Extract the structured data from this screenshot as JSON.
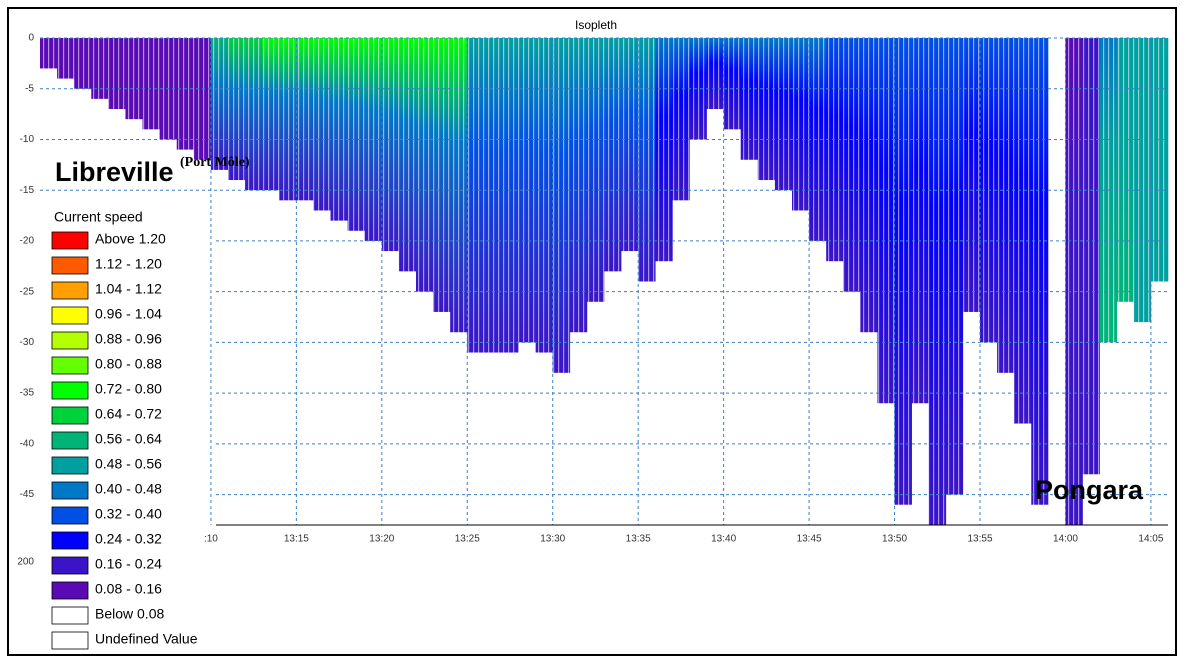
{
  "chart_data": {
    "type": "isopleth",
    "title": "Isopleth",
    "legend_title": "Current speed",
    "legend": [
      {
        "label": "Above 1.20",
        "color": "#ff0000"
      },
      {
        "label": "1.12 - 1.20",
        "color": "#ff5a00"
      },
      {
        "label": "1.04 - 1.12",
        "color": "#ffa000"
      },
      {
        "label": "0.96 - 1.04",
        "color": "#ffff00"
      },
      {
        "label": "0.88 - 0.96",
        "color": "#b4ff00"
      },
      {
        "label": "0.80 - 0.88",
        "color": "#64ff00"
      },
      {
        "label": "0.72 - 0.80",
        "color": "#00ff00"
      },
      {
        "label": "0.64 - 0.72",
        "color": "#00d23c"
      },
      {
        "label": "0.56 - 0.64",
        "color": "#00b478"
      },
      {
        "label": "0.48 - 0.56",
        "color": "#00a0a0"
      },
      {
        "label": "0.40 - 0.48",
        "color": "#0078c8"
      },
      {
        "label": "0.32 - 0.40",
        "color": "#0050e6"
      },
      {
        "label": "0.24 - 0.32",
        "color": "#0000ff"
      },
      {
        "label": "0.16 - 0.24",
        "color": "#3c14c8"
      },
      {
        "label": "0.08 - 0.16",
        "color": "#5a0ab4"
      },
      {
        "label": "Below 0.08",
        "color": "#ffffff"
      },
      {
        "label": "Undefined Value",
        "color": "#ffffff"
      }
    ],
    "annotations": [
      {
        "text": "Libreville"
      },
      {
        "text": "(Port Môle)"
      },
      {
        "text": "Pongara"
      },
      {
        "text": "200"
      }
    ],
    "x": [
      "13:00",
      "13:01",
      "13:02",
      "13:03",
      "13:04",
      "13:05",
      "13:06",
      "13:07",
      "13:08",
      "13:09",
      "13:10",
      "13:11",
      "13:12",
      "13:13",
      "13:14",
      "13:15",
      "13:16",
      "13:17",
      "13:18",
      "13:19",
      "13:20",
      "13:21",
      "13:22",
      "13:23",
      "13:24",
      "13:25",
      "13:26",
      "13:27",
      "13:28",
      "13:29",
      "13:30",
      "13:31",
      "13:32",
      "13:33",
      "13:34",
      "13:35",
      "13:36",
      "13:37",
      "13:38",
      "13:39",
      "13:40",
      "13:41",
      "13:42",
      "13:43",
      "13:44",
      "13:45",
      "13:46",
      "13:47",
      "13:48",
      "13:49",
      "13:50",
      "13:51",
      "13:52",
      "13:53",
      "13:54",
      "13:55",
      "13:56",
      "13:57",
      "13:58",
      "13:59",
      "14:00",
      "14:01",
      "14:02",
      "14:03",
      "14:04",
      "14:05"
    ],
    "bottom_depth": [
      -3,
      -4,
      -5,
      -6,
      -7,
      -8,
      -9,
      -10,
      -11,
      -12,
      -13,
      -14,
      -15,
      -15,
      -16,
      -16,
      -17,
      -18,
      -19,
      -20,
      -21,
      -23,
      -25,
      -27,
      -29,
      -31,
      -31,
      -31,
      -30,
      -31,
      -33,
      -29,
      -26,
      -23,
      -21,
      -24,
      -22,
      -16,
      -10,
      -7,
      -9,
      -12,
      -14,
      -15,
      -17,
      -20,
      -22,
      -25,
      -29,
      -36,
      -46,
      -36,
      -48,
      -45,
      -27,
      -30,
      -33,
      -38,
      -46,
      null,
      -48,
      -43,
      -30,
      -26,
      -28,
      -24
    ],
    "surface_speed": [
      0.14,
      0.14,
      0.14,
      0.14,
      0.14,
      0.14,
      0.14,
      0.14,
      0.14,
      0.14,
      0.6,
      0.65,
      0.7,
      0.75,
      0.75,
      0.75,
      0.75,
      0.75,
      0.75,
      0.75,
      0.75,
      0.75,
      0.75,
      0.75,
      0.75,
      0.55,
      0.55,
      0.55,
      0.55,
      0.55,
      0.55,
      0.55,
      0.55,
      0.55,
      0.55,
      0.55,
      0.4,
      0.4,
      0.4,
      0.4,
      0.4,
      0.4,
      0.4,
      0.4,
      0.4,
      0.4,
      0.35,
      0.35,
      0.35,
      0.35,
      0.35,
      0.35,
      0.35,
      0.35,
      0.35,
      0.35,
      0.35,
      0.35,
      0.35,
      null,
      0.15,
      0.2,
      0.4,
      0.5,
      0.55,
      0.5
    ],
    "bottom_speed": [
      0.12,
      0.12,
      0.12,
      0.12,
      0.12,
      0.12,
      0.12,
      0.12,
      0.12,
      0.12,
      0.2,
      0.2,
      0.2,
      0.2,
      0.2,
      0.2,
      0.2,
      0.2,
      0.2,
      0.2,
      0.2,
      0.2,
      0.2,
      0.2,
      0.2,
      0.2,
      0.2,
      0.2,
      0.2,
      0.2,
      0.2,
      0.2,
      0.2,
      0.2,
      0.2,
      0.2,
      0.2,
      0.2,
      0.2,
      0.2,
      0.2,
      0.2,
      0.2,
      0.2,
      0.2,
      0.2,
      0.2,
      0.2,
      0.2,
      0.2,
      0.2,
      0.2,
      0.2,
      0.2,
      0.2,
      0.2,
      0.2,
      0.2,
      0.2,
      null,
      0.2,
      0.2,
      0.6,
      0.6,
      0.5,
      0.5
    ],
    "xlim": [
      "13:00",
      "14:06"
    ],
    "ylim": [
      -48,
      0
    ],
    "yticks": [
      0,
      -5,
      -10,
      -15,
      -20,
      -25,
      -30,
      -35,
      -40,
      -45
    ],
    "xticks": [
      {
        "value": "13:10",
        "label": ":10"
      },
      {
        "value": "13:15",
        "label": "13:15"
      },
      {
        "value": "13:20",
        "label": "13:20"
      },
      {
        "value": "13:25",
        "label": "13:25"
      },
      {
        "value": "13:30",
        "label": "13:30"
      },
      {
        "value": "13:35",
        "label": "13:35"
      },
      {
        "value": "13:40",
        "label": "13:40"
      },
      {
        "value": "13:45",
        "label": "13:45"
      },
      {
        "value": "13:50",
        "label": "13:50"
      },
      {
        "value": "13:55",
        "label": "13:55"
      },
      {
        "value": "14:00",
        "label": "14:00"
      },
      {
        "value": "14:05",
        "label": "14:05"
      }
    ],
    "grid": true,
    "grid_color": "#3a7fc8"
  }
}
